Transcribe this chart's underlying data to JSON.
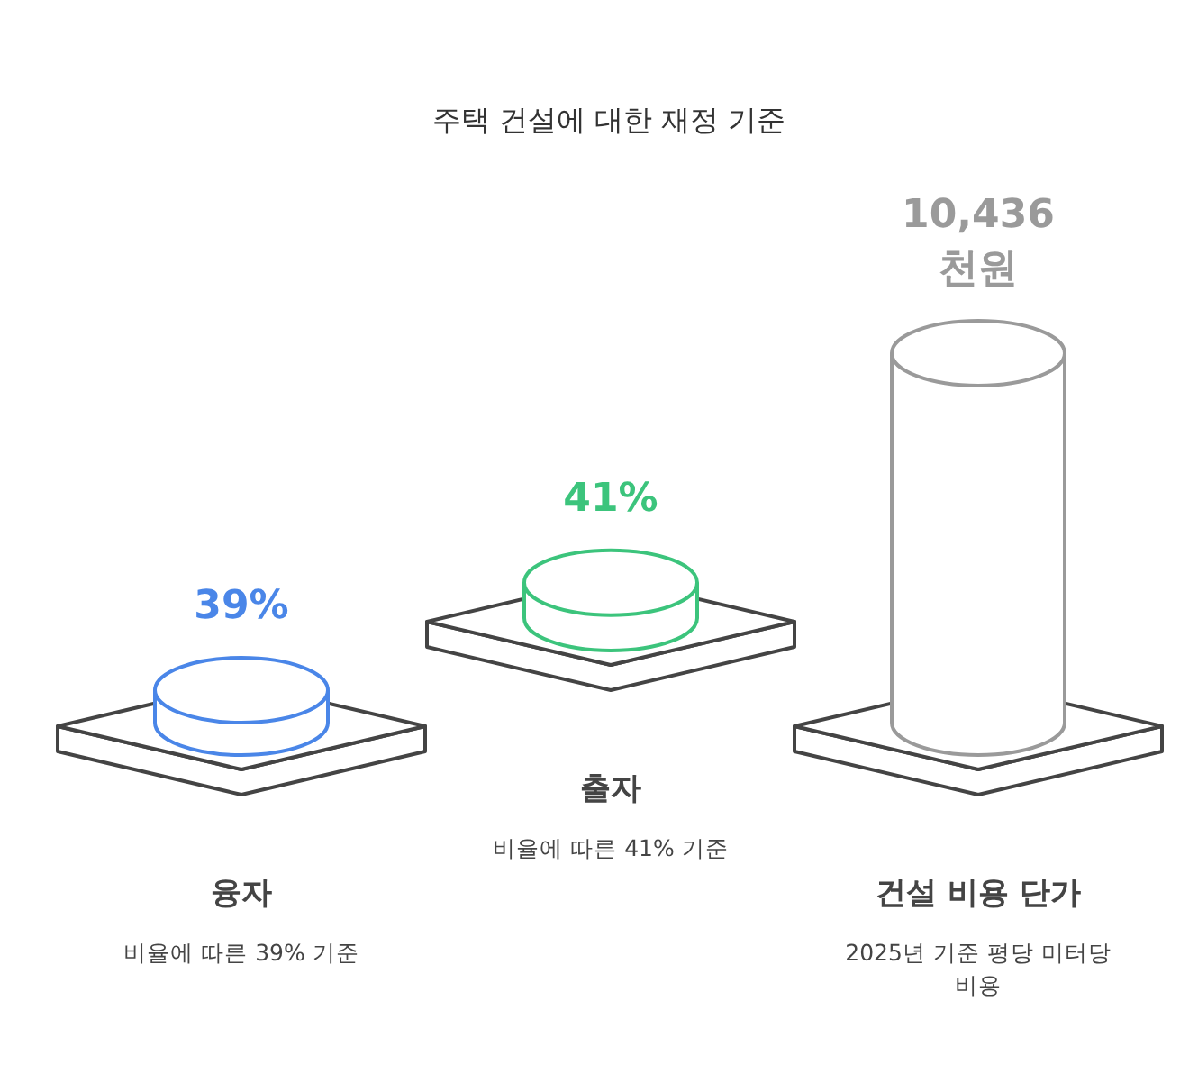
{
  "chart_data": {
    "type": "other",
    "title": "주택 건설에 대한 재정 기준",
    "categories": [
      "융자",
      "출자",
      "건설 비용 단가"
    ],
    "values": [
      39,
      41,
      10436
    ],
    "value_labels": [
      "39%",
      "41%",
      "10,436\n천원"
    ],
    "colors": [
      "#4a86e8",
      "#3cc47c",
      "#9a9a9a"
    ],
    "annotations": [
      "비율에 따른 39% 기준",
      "비율에 따른 41% 기준",
      "2025년 기준 평당 미터당\n비용"
    ]
  }
}
